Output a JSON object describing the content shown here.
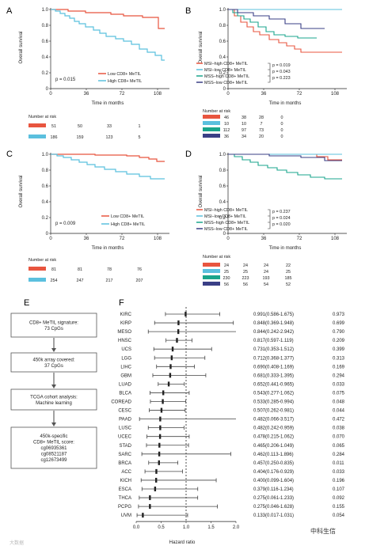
{
  "panels": {
    "A": {
      "letter": "A",
      "ylabel": "Overall survival",
      "xlabel": "Time in months",
      "pvalue": "p = 0.015",
      "yticks": [
        "1.0",
        "0.8",
        "0.6",
        "0.4",
        "0.2",
        "0"
      ],
      "xticks": [
        "0",
        "36",
        "72",
        "108"
      ],
      "legend": [
        {
          "label": "Low CD8+ MeTIL",
          "color": "#e8553f"
        },
        {
          "label": "High CD8+ MeTIL",
          "color": "#5bc0de"
        }
      ],
      "risk_title": "Number at risk",
      "risk_rows": [
        {
          "color": "#e8553f",
          "values": [
            "51",
            "50",
            "33",
            "1"
          ]
        },
        {
          "color": "#5bc0de",
          "values": [
            "186",
            "159",
            "123",
            "5"
          ]
        }
      ]
    },
    "B": {
      "letter": "B",
      "ylabel": "Overall survival",
      "xlabel": "Time in months",
      "yticks": [
        "1.0",
        "0.8",
        "0.6",
        "0.4",
        "0.2",
        "0"
      ],
      "xticks": [
        "0",
        "36",
        "72",
        "108"
      ],
      "legend": [
        {
          "label": "MSI–high CD8+ MeTIL",
          "color": "#e8553f"
        },
        {
          "label": "MSI–low CD8+ MeTIL",
          "color": "#5bc0de"
        },
        {
          "label": "MSS–high CD8+ MeTIL",
          "color": "#1aa58c"
        },
        {
          "label": "MSS–low CD8+ MeTIL",
          "color": "#3a3f86"
        }
      ],
      "pvalues": [
        "p = 0.019",
        "p = 0.043",
        "p = 0.223"
      ],
      "risk_title": "Number at risk",
      "risk_rows": [
        {
          "color": "#e8553f",
          "values": [
            "46",
            "38",
            "28",
            "0"
          ]
        },
        {
          "color": "#5bc0de",
          "values": [
            "10",
            "10",
            "7",
            "0"
          ]
        },
        {
          "color": "#1aa58c",
          "values": [
            "112",
            "97",
            "73",
            "0"
          ]
        },
        {
          "color": "#3a3f86",
          "values": [
            "36",
            "34",
            "20",
            "0"
          ]
        }
      ]
    },
    "C": {
      "letter": "C",
      "ylabel": "Overall survival",
      "xlabel": "Time in months",
      "pvalue": "p = 0.009",
      "yticks": [
        "1.0",
        "0.8",
        "0.6",
        "0.4",
        "0.2",
        "0"
      ],
      "xticks": [
        "0",
        "36",
        "72",
        "108"
      ],
      "legend": [
        {
          "label": "Low CD8+ MeTIL",
          "color": "#e8553f"
        },
        {
          "label": "High CD8+ MeTIL",
          "color": "#5bc0de"
        }
      ],
      "risk_title": "Number at risk",
      "risk_rows": [
        {
          "color": "#e8553f",
          "values": [
            "81",
            "81",
            "78",
            "76"
          ]
        },
        {
          "color": "#5bc0de",
          "values": [
            "254",
            "247",
            "217",
            "207"
          ]
        }
      ]
    },
    "D": {
      "letter": "D",
      "ylabel": "Overall survival",
      "xlabel": "Time in months",
      "yticks": [
        "1.0",
        "0.8",
        "0.6",
        "0.4",
        "0.2",
        "0"
      ],
      "xticks": [
        "0",
        "36",
        "72",
        "108"
      ],
      "legend": [
        {
          "label": "MSI–high CD8+ MeTIL",
          "color": "#e8553f"
        },
        {
          "label": "MSI–low CD8+ MeTIL",
          "color": "#5bc0de"
        },
        {
          "label": "MSS–high CD8+ MeTIL",
          "color": "#1aa58c"
        },
        {
          "label": "MSS–low CD8+ MeTIL",
          "color": "#3a3f86"
        }
      ],
      "pvalues": [
        "p = 0.237",
        "p = 0.024",
        "p = 0.020"
      ],
      "risk_title": "Number at risk",
      "risk_rows": [
        {
          "color": "#e8553f",
          "values": [
            "24",
            "24",
            "24",
            "22"
          ]
        },
        {
          "color": "#5bc0de",
          "values": [
            "25",
            "25",
            "24",
            "25"
          ]
        },
        {
          "color": "#1aa58c",
          "values": [
            "230",
            "223",
            "193",
            "185"
          ]
        },
        {
          "color": "#3a3f86",
          "values": [
            "56",
            "56",
            "54",
            "52"
          ]
        }
      ]
    }
  },
  "flow": {
    "letter": "E",
    "steps": [
      [
        "CD8+ MeTIL signature:",
        "73 CpGs"
      ],
      [
        "450k array covered:",
        "37 CpGs"
      ],
      [
        "TCGA cohort analysis:",
        "Machine learning"
      ],
      [
        "450k-specific",
        "CD8+ MeTIL score:",
        "cg06935361",
        "cg08521187",
        "cg12673499"
      ]
    ]
  },
  "forest": {
    "letter": "F",
    "xlabel": "Hazard ratio",
    "xticks": [
      "0.0",
      "0.5",
      "1.0",
      "1.5",
      "2.0"
    ]
  },
  "chart_data": {
    "type": "forest",
    "xlabel": "Hazard ratio",
    "xlim": [
      0,
      2.0
    ],
    "reference_line": 1.0,
    "rows": [
      {
        "label": "KIRC",
        "hr": 0.991,
        "lo": 0.586,
        "hi": 1.675,
        "ci_text": "0.991(0.586-1.675)",
        "p": "0.973"
      },
      {
        "label": "KIRP",
        "hr": 0.848,
        "lo": 0.369,
        "hi": 1.948,
        "ci_text": "0.848(0.369-1.948)",
        "p": "0.699"
      },
      {
        "label": "MESO",
        "hr": 0.844,
        "lo": 0.242,
        "hi": 2.942,
        "ci_text": "0.844(0.242-2.942)",
        "p": "0.790"
      },
      {
        "label": "HNSC",
        "hr": 0.817,
        "lo": 0.597,
        "hi": 1.119,
        "ci_text": "0.817(0.597-1.119)",
        "p": "0.209"
      },
      {
        "label": "UCS",
        "hr": 0.731,
        "lo": 0.353,
        "hi": 1.512,
        "ci_text": "0.731(0.353-1.512)",
        "p": "0.399"
      },
      {
        "label": "LGG",
        "hr": 0.712,
        "lo": 0.368,
        "hi": 1.377,
        "ci_text": "0.712(0.368-1.377)",
        "p": "0.313"
      },
      {
        "label": "LIHC",
        "hr": 0.69,
        "lo": 0.408,
        "hi": 1.169,
        "ci_text": "0.690(0.408-1.169)",
        "p": "0.169"
      },
      {
        "label": "GBM",
        "hr": 0.681,
        "lo": 0.333,
        "hi": 1.395,
        "ci_text": "0.681(0.333-1.395)",
        "p": "0.294"
      },
      {
        "label": "LUAD",
        "hr": 0.652,
        "lo": 0.441,
        "hi": 0.965,
        "ci_text": "0.652(0.441-0.965)",
        "p": "0.033"
      },
      {
        "label": "BLCA",
        "hr": 0.543,
        "lo": 0.277,
        "hi": 1.062,
        "ci_text": "0.543(0.277-1.062)",
        "p": "0.075"
      },
      {
        "label": "COREAD",
        "hr": 0.533,
        "lo": 0.285,
        "hi": 0.994,
        "ci_text": "0.533(0.285-0.994)",
        "p": "0.048"
      },
      {
        "label": "CESC",
        "hr": 0.507,
        "lo": 0.262,
        "hi": 0.981,
        "ci_text": "0.507(0.262-0.981)",
        "p": "0.044"
      },
      {
        "label": "PAAD",
        "hr": 0.482,
        "lo": 0.066,
        "hi": 3.517,
        "ci_text": "0.482(0.066-3.517)",
        "p": "0.472"
      },
      {
        "label": "LUSC",
        "hr": 0.482,
        "lo": 0.242,
        "hi": 0.959,
        "ci_text": "0.482(0.242-0.959)",
        "p": "0.038"
      },
      {
        "label": "UCEC",
        "hr": 0.478,
        "lo": 0.215,
        "hi": 1.062,
        "ci_text": "0.478(0.215-1.062)",
        "p": "0.070"
      },
      {
        "label": "STAD",
        "hr": 0.465,
        "lo": 0.206,
        "hi": 1.049,
        "ci_text": "0.465(0.206-1.049)",
        "p": "0.065"
      },
      {
        "label": "SARC",
        "hr": 0.462,
        "lo": 0.113,
        "hi": 1.896,
        "ci_text": "0.462(0.113-1.896)",
        "p": "0.284"
      },
      {
        "label": "BRCA",
        "hr": 0.457,
        "lo": 0.25,
        "hi": 0.835,
        "ci_text": "0.457(0.250-0.835)",
        "p": "0.011"
      },
      {
        "label": "ACC",
        "hr": 0.404,
        "lo": 0.176,
        "hi": 0.929,
        "ci_text": "0.404(0.176-0.929)",
        "p": "0.033"
      },
      {
        "label": "KICH",
        "hr": 0.4,
        "lo": 0.099,
        "hi": 1.604,
        "ci_text": "0.400(0.099-1.604)",
        "p": "0.196"
      },
      {
        "label": "ESCA",
        "hr": 0.379,
        "lo": 0.116,
        "hi": 1.234,
        "ci_text": "0.379(0.116-1.234)",
        "p": "0.107"
      },
      {
        "label": "THCA",
        "hr": 0.275,
        "lo": 0.061,
        "hi": 1.233,
        "ci_text": "0.275(0.061-1.233)",
        "p": "0.092"
      },
      {
        "label": "PCPG",
        "hr": 0.275,
        "lo": 0.046,
        "hi": 1.628,
        "ci_text": "0.275(0.046-1.628)",
        "p": "0.155"
      },
      {
        "label": "UVM",
        "hr": 0.133,
        "lo": 0.017,
        "hi": 1.031,
        "ci_text": "0.133(0.017-1.031)",
        "p": "0.054"
      }
    ]
  },
  "watermark_left": "大数据",
  "watermark_right": "中科生信"
}
